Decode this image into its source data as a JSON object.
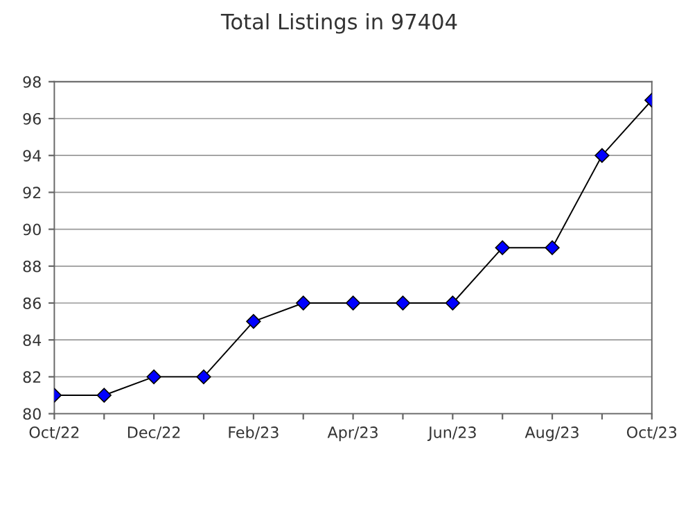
{
  "chart_data": {
    "type": "line",
    "title": "Total Listings in 97404",
    "categories": [
      "Oct/22",
      null,
      "Dec/22",
      null,
      "Feb/23",
      null,
      "Apr/23",
      null,
      "Jun/23",
      null,
      "Aug/23",
      null,
      "Oct/23"
    ],
    "series": [
      {
        "color": "#0000ff",
        "values": [
          81,
          81,
          82,
          82,
          85,
          86,
          86,
          86,
          86,
          89,
          89,
          94,
          97
        ]
      }
    ],
    "ylim": [
      80,
      98
    ],
    "yticks": [
      80,
      82,
      84,
      86,
      88,
      90,
      92,
      94,
      96,
      98
    ],
    "grid": "y",
    "marker": "diamond",
    "line_style": "solid"
  }
}
